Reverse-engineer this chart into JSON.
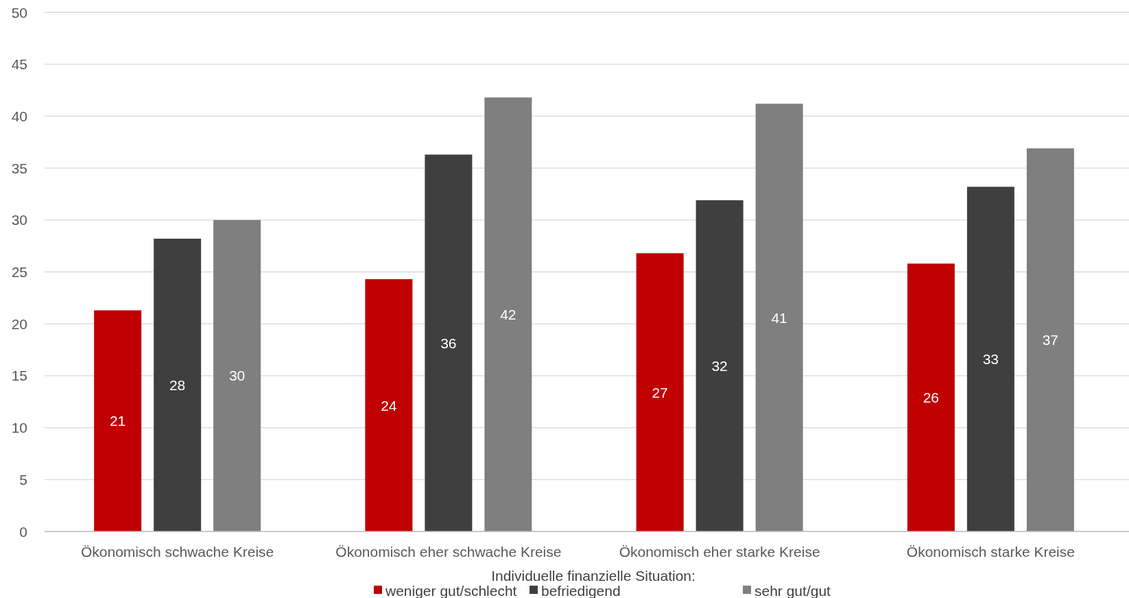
{
  "chart_data": {
    "type": "bar",
    "categories": [
      "Ökonomisch schwache Kreise",
      "Ökonomisch eher schwache Kreise",
      "Ökonomisch eher starke Kreise",
      "Ökonomisch starke Kreise"
    ],
    "series": [
      {
        "name": "weniger gut/schlecht",
        "color": "#c00000",
        "values": [
          21.3,
          24.3,
          26.8,
          25.8
        ],
        "value_labels": [
          "21",
          "24",
          "27",
          "26"
        ]
      },
      {
        "name": "befriedigend",
        "color": "#3f3f3f",
        "values": [
          28.2,
          36.3,
          31.9,
          33.2
        ],
        "value_labels": [
          "28",
          "36",
          "32",
          "33"
        ]
      },
      {
        "name": "sehr gut/gut",
        "color": "#7f7f7f",
        "values": [
          30.0,
          41.8,
          41.2,
          36.9
        ],
        "value_labels": [
          "30",
          "42",
          "41",
          "37"
        ]
      }
    ],
    "legend_title": "Individuelle finanzielle Situation:",
    "legend": "bottom",
    "grid": "y",
    "ylim": [
      0,
      50
    ],
    "yticks": [
      0,
      5,
      10,
      15,
      20,
      25,
      30,
      35,
      40,
      45,
      50
    ]
  }
}
